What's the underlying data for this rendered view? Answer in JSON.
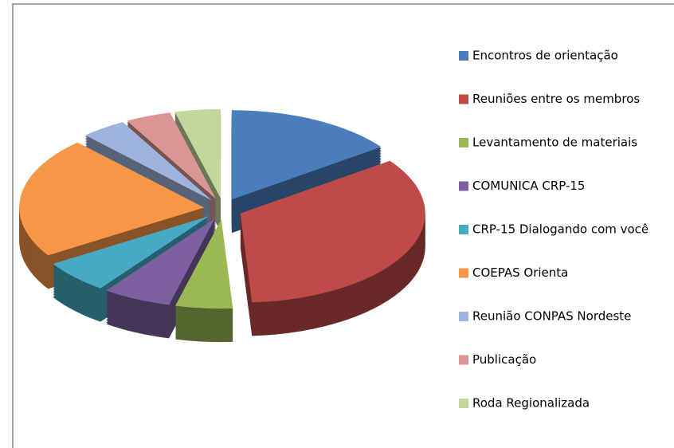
{
  "chart_data": {
    "type": "pie",
    "categories": [
      "Encontros de orientação",
      "Reuniões entre os membros",
      "Levantamento de materiais",
      "COMUNICA CRP-15",
      "CRP-15 Dialogando com você",
      "COEPAS Orienta",
      "Reunião CONPAS Nordeste",
      "Publicação",
      "Roda Regionalizada"
    ],
    "values": [
      15,
      34,
      5,
      6,
      6,
      22,
      4,
      4,
      4
    ],
    "colors": [
      "#4a7ebb",
      "#be4b48",
      "#98b954",
      "#7d60a0",
      "#46aac5",
      "#f79646",
      "#9fb4dc",
      "#d99694",
      "#c3d69b"
    ],
    "legend": "right"
  }
}
